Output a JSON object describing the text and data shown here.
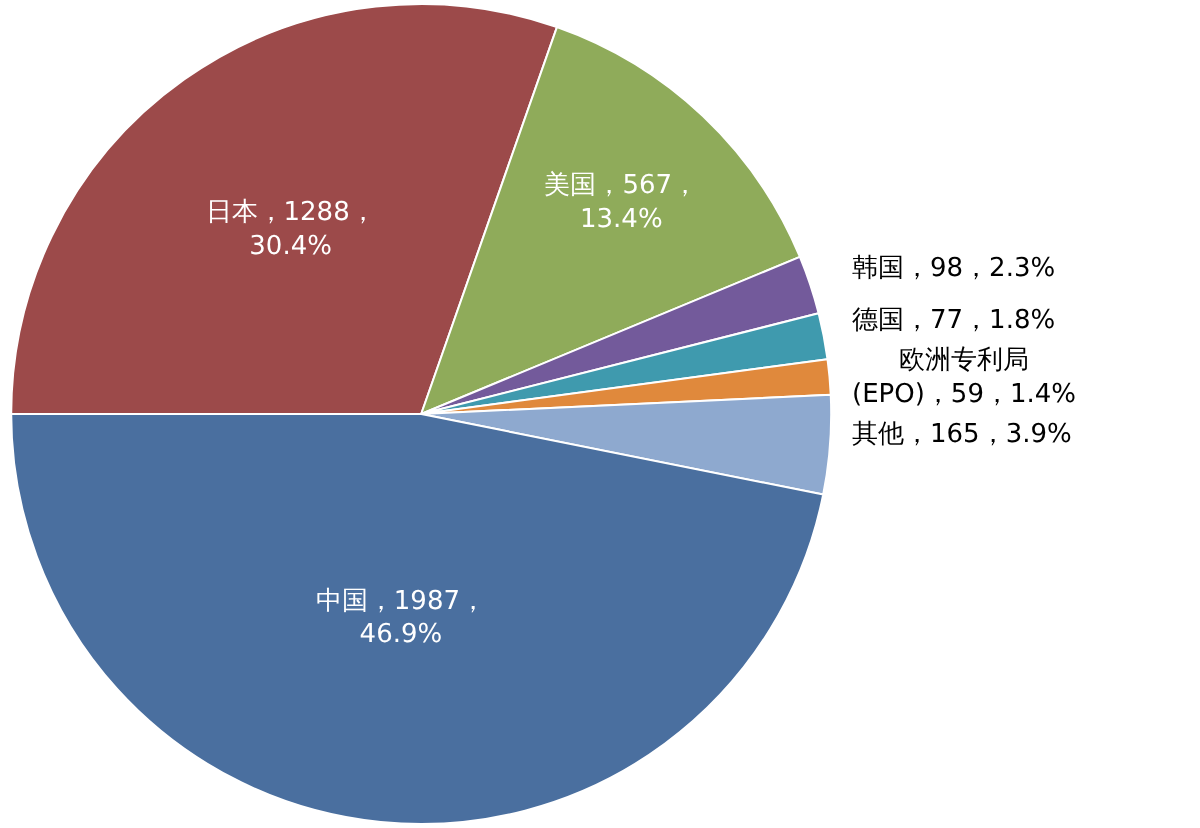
{
  "chart_data": {
    "type": "pie",
    "categories": [
      "日本，1288，\n30.4%",
      "美国，567，\n13.4%",
      "韩国，98，2.3%",
      "德国，77，1.8%",
      "欧洲专利局\n(EPO)，59，1.4%",
      "其他，165，3.9%",
      "中国，1987，\n46.9%"
    ],
    "values": [
      1288,
      567,
      98,
      77,
      59,
      165,
      1987
    ],
    "colors": [
      "#9c4a4a",
      "#8fab5a",
      "#735a9b",
      "#3f9aae",
      "#e0893c",
      "#8ea9cf",
      "#4a6f9f"
    ],
    "legend": false
  }
}
